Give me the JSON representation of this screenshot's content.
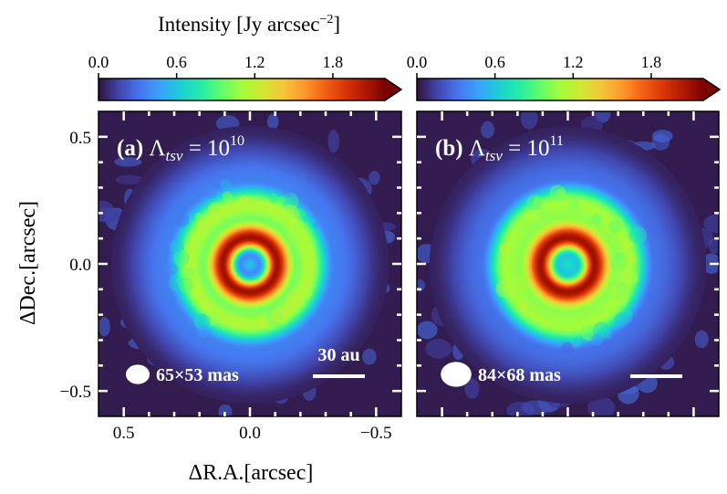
{
  "colorbar": {
    "label": "Intensity [Jy arcsec",
    "label_exp": "−2",
    "label_close": "]",
    "ticks": [
      0.0,
      0.6,
      1.2,
      1.8
    ],
    "tick_labels": [
      "0.0",
      "0.6",
      "1.2",
      "1.8"
    ],
    "range": [
      0.0,
      2.2
    ],
    "extend": "max",
    "colormap": "turbo",
    "stops": [
      "#30123b",
      "#4145ab",
      "#4675ed",
      "#39a2fc",
      "#1bcfd4",
      "#24eca6",
      "#61fc6c",
      "#a4fc3b",
      "#d1e834",
      "#f3c63a",
      "#fe9b2d",
      "#f36315",
      "#d93806",
      "#b11901",
      "#7a0402"
    ]
  },
  "chart_data": [
    {
      "type": "heatmap",
      "panel": "(a)",
      "title_prefix": "(a)",
      "lambda_symbol": "Λ",
      "lambda_sub": "tsv",
      "equals": "= 10",
      "lambda_exp": "10",
      "regularization_exponent": 10,
      "beam_label": "65×53 mas",
      "beam_mas": [
        65,
        53
      ],
      "scale_bar_label": "30 au",
      "scale_bar_au": 30,
      "xlim": [
        0.6,
        -0.6
      ],
      "ylim": [
        -0.6,
        0.6
      ],
      "xticks": [
        -0.5,
        0.0,
        0.5
      ],
      "xtick_labels": [
        "−0.5",
        "0.0",
        "0.5"
      ],
      "yticks": [
        -0.5,
        0.0,
        0.5
      ],
      "ytick_labels": [
        "−0.5",
        "0.0",
        "0.5"
      ],
      "xlabel": "ΔR.A.[arcsec]",
      "ylabel": "ΔDec.[arcsec]",
      "rings": [
        {
          "name": "center",
          "radius_arcsec": 0.0,
          "intensity": 0.6
        },
        {
          "name": "cavity",
          "radius_arcsec": 0.04,
          "intensity": 0.4
        },
        {
          "name": "inner ring",
          "radius_arcsec": 0.11,
          "intensity": 2.1
        },
        {
          "name": "gap",
          "radius_arcsec": 0.185,
          "intensity": 1.0
        },
        {
          "name": "outer ring",
          "radius_arcsec": 0.24,
          "intensity": 1.15
        },
        {
          "name": "outer edge",
          "radius_arcsec": 0.34,
          "intensity": 0.35
        },
        {
          "name": "background",
          "radius_arcsec": 0.55,
          "intensity": 0.05
        }
      ]
    },
    {
      "type": "heatmap",
      "panel": "(b)",
      "title_prefix": "(b)",
      "lambda_symbol": "Λ",
      "lambda_sub": "tsv",
      "equals": "= 10",
      "lambda_exp": "11",
      "regularization_exponent": 11,
      "beam_label": "84×68 mas",
      "beam_mas": [
        84,
        68
      ],
      "scale_bar_label": "",
      "scale_bar_au": 30,
      "xlim": [
        0.6,
        -0.6
      ],
      "ylim": [
        -0.6,
        0.6
      ],
      "xticks": [
        -0.5,
        0.0,
        0.5
      ],
      "yticks": [
        -0.5,
        0.0,
        0.5
      ],
      "rings": [
        {
          "name": "center",
          "radius_arcsec": 0.0,
          "intensity": 0.7
        },
        {
          "name": "cavity",
          "radius_arcsec": 0.04,
          "intensity": 0.6
        },
        {
          "name": "inner ring",
          "radius_arcsec": 0.11,
          "intensity": 2.1
        },
        {
          "name": "gap",
          "radius_arcsec": 0.19,
          "intensity": 1.05
        },
        {
          "name": "outer ring",
          "radius_arcsec": 0.25,
          "intensity": 1.1
        },
        {
          "name": "outer edge",
          "radius_arcsec": 0.35,
          "intensity": 0.3
        },
        {
          "name": "background",
          "radius_arcsec": 0.55,
          "intensity": 0.05
        }
      ]
    }
  ]
}
